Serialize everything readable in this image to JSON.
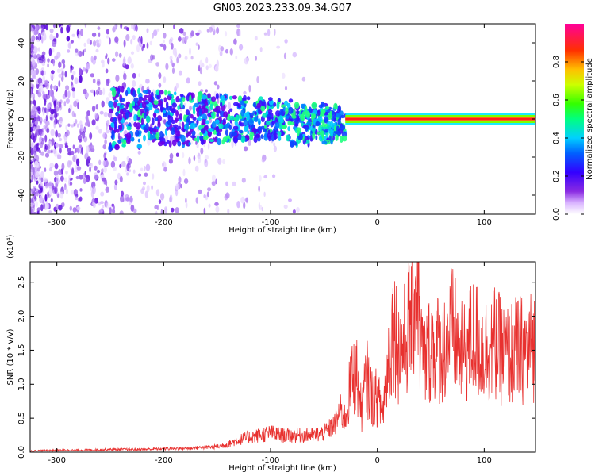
{
  "figure": {
    "title": "GN03.2023.233.09.34.G07"
  },
  "chart_data": [
    {
      "type": "heatmap",
      "xlabel": "Height of straight line (km)",
      "ylabel": "Frequency (Hz)",
      "xlim": [
        -325,
        148
      ],
      "ylim": [
        -50,
        50
      ],
      "x_ticks": [
        -300,
        -200,
        -100,
        0,
        100
      ],
      "y_ticks": [
        -40,
        -20,
        0,
        20,
        40
      ],
      "colorbar": {
        "label": "Normalized spectral amplitude",
        "range": [
          0,
          1
        ],
        "ticks": [
          "0.0",
          "0.2",
          "0.4",
          "0.6",
          "0.8"
        ],
        "colors": [
          "#ffffff",
          "#d9b3ff",
          "#8a2be2",
          "#5a00e0",
          "#0000ff",
          "#00c8ff",
          "#00ff7f",
          "#66ff00",
          "#ffff00",
          "#ff8000",
          "#ff0000",
          "#ff0099"
        ]
      },
      "features": {
        "carrier_line_frequency_hz": 0,
        "carrier_line_x_range": [
          -30,
          148
        ],
        "noise_region_x_range": [
          -325,
          -150
        ],
        "transition_region_x_range": [
          -250,
          -30
        ]
      }
    },
    {
      "type": "line",
      "xlabel": "Height of straight line (km)",
      "ylabel": "SNR (10 * v/v)",
      "y_multiplier": "(x10⁴)",
      "xlim": [
        -325,
        148
      ],
      "ylim": [
        0,
        2.8
      ],
      "x_ticks": [
        -300,
        -200,
        -100,
        0,
        100
      ],
      "y_ticks": [
        "0.0",
        "0.5",
        "1.0",
        "1.5",
        "2.0",
        "2.5"
      ],
      "series": [
        {
          "color": "#e8312f",
          "x": [
            -325,
            -300,
            -275,
            -250,
            -225,
            -200,
            -175,
            -150,
            -140,
            -130,
            -120,
            -110,
            -100,
            -90,
            -80,
            -70,
            -60,
            -50,
            -40,
            -35,
            -30,
            -25,
            -20,
            -15,
            -10,
            -5,
            0,
            5,
            10,
            15,
            20,
            25,
            30,
            35,
            38,
            40,
            45,
            50,
            60,
            70,
            80,
            90,
            100,
            110,
            120,
            130,
            140,
            148
          ],
          "y": [
            0.02,
            0.03,
            0.03,
            0.04,
            0.04,
            0.05,
            0.06,
            0.08,
            0.12,
            0.18,
            0.22,
            0.25,
            0.28,
            0.25,
            0.24,
            0.25,
            0.25,
            0.28,
            0.4,
            0.6,
            0.5,
            1.0,
            1.2,
            0.6,
            1.1,
            0.8,
            0.8,
            0.6,
            1.3,
            1.9,
            1.5,
            1.6,
            1.9,
            2.4,
            2.75,
            1.6,
            1.3,
            1.6,
            1.5,
            1.8,
            1.4,
            1.7,
            1.5,
            1.6,
            1.4,
            1.5,
            1.5,
            1.6
          ]
        }
      ]
    }
  ]
}
